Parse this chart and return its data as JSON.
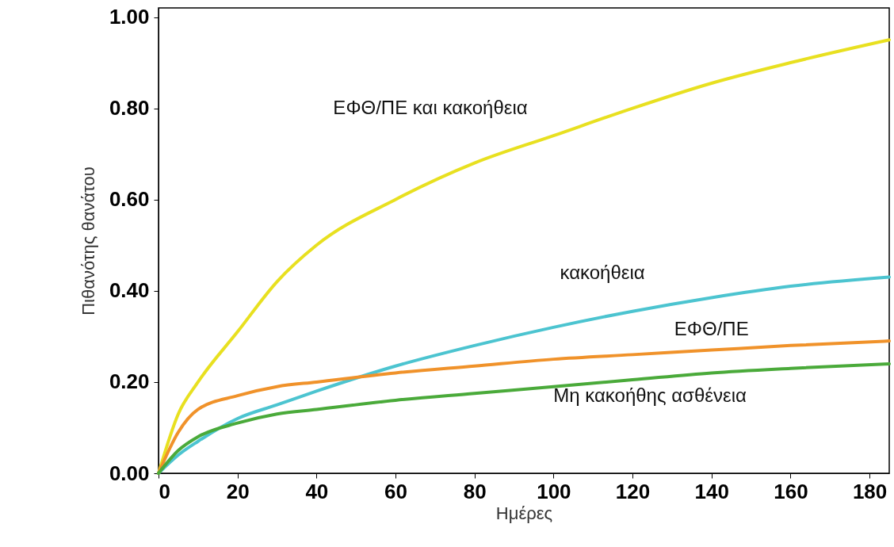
{
  "chart_data": {
    "type": "line",
    "xlabel": "Ημέρες",
    "ylabel": "Πιθανότης θανάτου",
    "x": [
      0,
      5,
      10,
      20,
      30,
      40,
      60,
      80,
      100,
      120,
      140,
      160,
      185
    ],
    "xlim": [
      0,
      185
    ],
    "xticks": [
      0,
      20,
      40,
      60,
      80,
      100,
      120,
      140,
      160,
      180
    ],
    "ylim": [
      0,
      1.02
    ],
    "yticks": [
      {
        "value": 0,
        "label": "0.00"
      },
      {
        "value": 0.2,
        "label": "0.20"
      },
      {
        "value": 0.4,
        "label": "0.40"
      },
      {
        "value": 0.6,
        "label": "0.60"
      },
      {
        "value": 0.8,
        "label": "0.80"
      },
      {
        "value": 1,
        "label": "1.00"
      }
    ],
    "grid": false,
    "marker": "none",
    "line_style": "solid",
    "series": [
      {
        "name": "ΕΦΘ/ΠΕ και κακοήθεια",
        "color": "#e8e020",
        "values": [
          0,
          0.13,
          0.2,
          0.31,
          0.42,
          0.5,
          0.6,
          0.68,
          0.74,
          0.8,
          0.855,
          0.9,
          0.95
        ]
      },
      {
        "name": "κακοήθεια",
        "color": "#4cc4d0",
        "values": [
          0,
          0.04,
          0.07,
          0.12,
          0.15,
          0.18,
          0.235,
          0.28,
          0.32,
          0.355,
          0.385,
          0.41,
          0.43
        ]
      },
      {
        "name": "ΕΦΘ/ΠΕ",
        "color": "#f0922a",
        "values": [
          0,
          0.09,
          0.14,
          0.17,
          0.19,
          0.2,
          0.22,
          0.235,
          0.25,
          0.26,
          0.27,
          0.28,
          0.29
        ]
      },
      {
        "name": "Μη κακοήθης ασθένεια",
        "color": "#4aaa3a",
        "values": [
          0,
          0.05,
          0.08,
          0.11,
          0.13,
          0.14,
          0.16,
          0.175,
          0.19,
          0.205,
          0.22,
          0.23,
          0.24
        ]
      }
    ]
  }
}
